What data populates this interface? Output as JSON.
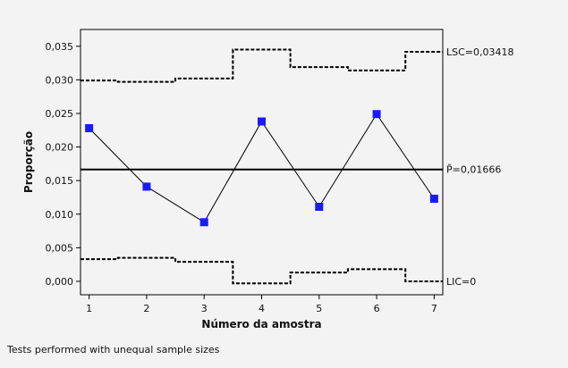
{
  "chart_data": {
    "type": "line",
    "title": "",
    "xlabel": "Número da amostra",
    "ylabel": "Proporção",
    "x": [
      1,
      2,
      3,
      4,
      5,
      6,
      7
    ],
    "xlim": [
      0.85,
      7.15
    ],
    "ylim": [
      -0.002,
      0.0375
    ],
    "yticks": [
      0.0,
      0.005,
      0.01,
      0.015,
      0.02,
      0.025,
      0.03,
      0.035
    ],
    "ytick_labels": [
      "0,000",
      "0,005",
      "0,010",
      "0,015",
      "0,020",
      "0,025",
      "0,030",
      "0,035"
    ],
    "xtick_labels": [
      "1",
      "2",
      "3",
      "4",
      "5",
      "6",
      "7"
    ],
    "grid": false,
    "series": [
      {
        "values": [
          0.0228,
          0.0141,
          0.0088,
          0.0238,
          0.0111,
          0.0249,
          0.0123
        ],
        "color": "#1a1aff"
      }
    ],
    "center_line": {
      "value": 0.01666,
      "label": "P̄=0,01666"
    },
    "upper_limit": {
      "values": [
        0.0299,
        0.0297,
        0.0302,
        0.0345,
        0.0319,
        0.0314,
        0.03418
      ],
      "label": "LSC=0,03418"
    },
    "lower_limit": {
      "values": [
        0.0033,
        0.0035,
        0.0029,
        -0.0003,
        0.0013,
        0.0018,
        0.0
      ],
      "label": "LIC=0"
    },
    "footnote": "Tests performed with unequal sample sizes"
  }
}
